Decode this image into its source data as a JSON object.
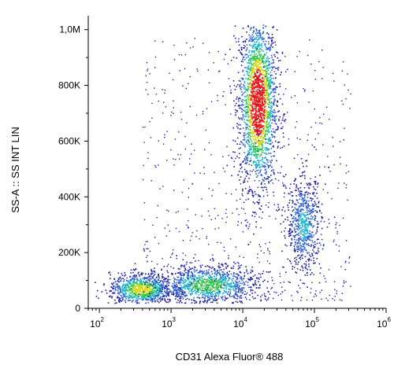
{
  "chart_data": {
    "type": "scatter",
    "title": "",
    "xlabel": "CD31 Alexa Fluor® 488",
    "ylabel": "SS-A :: SS INT LIN",
    "x_scale": "log",
    "x_range": [
      70,
      1000000
    ],
    "y_range": [
      0,
      1050000
    ],
    "x_ticks": [
      {
        "value": 100,
        "base": "10",
        "exp": "2"
      },
      {
        "value": 1000,
        "base": "10",
        "exp": "3"
      },
      {
        "value": 10000,
        "base": "10",
        "exp": "4"
      },
      {
        "value": 100000,
        "base": "10",
        "exp": "5"
      },
      {
        "value": 1000000,
        "base": "10",
        "exp": "6"
      }
    ],
    "y_ticks": [
      {
        "value": 0,
        "label": "0"
      },
      {
        "value": 200000,
        "label": "200K"
      },
      {
        "value": 400000,
        "label": "400K"
      },
      {
        "value": 600000,
        "label": "600K"
      },
      {
        "value": 800000,
        "label": "800K"
      },
      {
        "value": 1000000,
        "label": "1,0M"
      }
    ],
    "colormap": [
      "#1a1aa8",
      "#2a5cd8",
      "#18b4d0",
      "#2ec84a",
      "#d6d81a",
      "#e81818"
    ],
    "populations": [
      {
        "center_x": 16000,
        "center_y": 740000,
        "spread_log10_x": 0.13,
        "spread_y": 150000,
        "relative_density": 1.0
      },
      {
        "center_x": 380,
        "center_y": 70000,
        "spread_log10_x": 0.22,
        "spread_y": 28000,
        "relative_density": 0.7
      },
      {
        "center_x": 3200,
        "center_y": 85000,
        "spread_log10_x": 0.35,
        "spread_y": 35000,
        "relative_density": 0.55
      },
      {
        "center_x": 70000,
        "center_y": 300000,
        "spread_log10_x": 0.12,
        "spread_y": 85000,
        "relative_density": 0.35
      }
    ]
  }
}
